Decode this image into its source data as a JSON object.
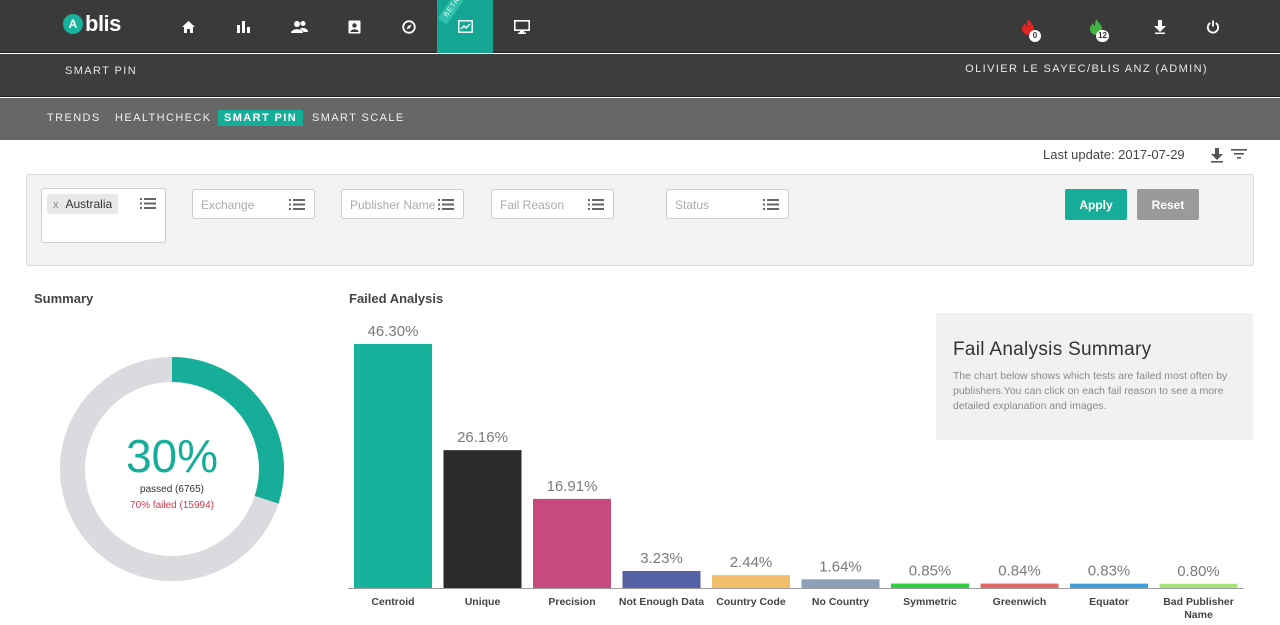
{
  "app": {
    "logo_text": "blis",
    "logo_mark": "A"
  },
  "nav": {
    "icons": [
      {
        "name": "home-icon"
      },
      {
        "name": "bar-chart-icon"
      },
      {
        "name": "users-icon"
      },
      {
        "name": "contact-card-icon"
      },
      {
        "name": "compass-icon"
      },
      {
        "name": "trend-chart-icon",
        "active": true,
        "ribbon": "BETA"
      },
      {
        "name": "monitor-icon"
      }
    ],
    "beta_label": "BETA",
    "alerts": {
      "red_count": "0",
      "green_count": "12"
    }
  },
  "subheader": {
    "title": "SMART PIN",
    "user": "OLIVIER  LE SAYEC/BLIS ANZ (ADMIN)"
  },
  "tabs": [
    {
      "label": "TRENDS",
      "active": false
    },
    {
      "label": "HEALTHCHECK",
      "active": false
    },
    {
      "label": "SMART PIN",
      "active": true
    },
    {
      "label": "SMART SCALE",
      "active": false
    }
  ],
  "last_update": "Last update: 2017-07-29",
  "filters": {
    "country_chip": "Australia",
    "chip_remove": "x",
    "exchange_placeholder": "Exchange",
    "publisher_placeholder": "Publisher Name",
    "fail_reason_placeholder": "Fail Reason",
    "status_placeholder": "Status",
    "apply_label": "Apply",
    "reset_label": "Reset"
  },
  "summary": {
    "title": "Summary",
    "percent": "30%",
    "passed_text": "passed (6765)",
    "failed_text": "70% failed (15994)",
    "passed_fraction": 0.3,
    "pass_color": "#16ad99",
    "fail_color": "#dadadf"
  },
  "failed_analysis": {
    "title": "Failed Analysis"
  },
  "info_box": {
    "title": "Fail Analysis Summary",
    "text": "The chart below shows which tests are failed most often by publishers.You can click on each fail reason to see a more detailed explanation and images."
  },
  "chart_data": {
    "type": "bar",
    "title": "Failed Analysis",
    "categories": [
      "Centroid",
      "Unique",
      "Precision",
      "Not Enough Data",
      "Country Code",
      "No Country",
      "Symmetric",
      "Greenwich",
      "Equator",
      "Bad Publisher Name"
    ],
    "values": [
      46.3,
      26.16,
      16.91,
      3.23,
      2.44,
      1.64,
      0.85,
      0.84,
      0.83,
      0.8
    ],
    "labels": [
      "46.30%",
      "26.16%",
      "16.91%",
      "3.23%",
      "2.44%",
      "1.64%",
      "0.85%",
      "0.84%",
      "0.83%",
      "0.80%"
    ],
    "colors": [
      "#16b29c",
      "#2b2b2b",
      "#c84a7c",
      "#5461a4",
      "#f1bf6c",
      "#8e9fb8",
      "#2fcf3e",
      "#e3685f",
      "#3e9fdc",
      "#a8e27a"
    ],
    "ylim": [
      0,
      46.3
    ],
    "xlabel": "",
    "ylabel": ""
  }
}
